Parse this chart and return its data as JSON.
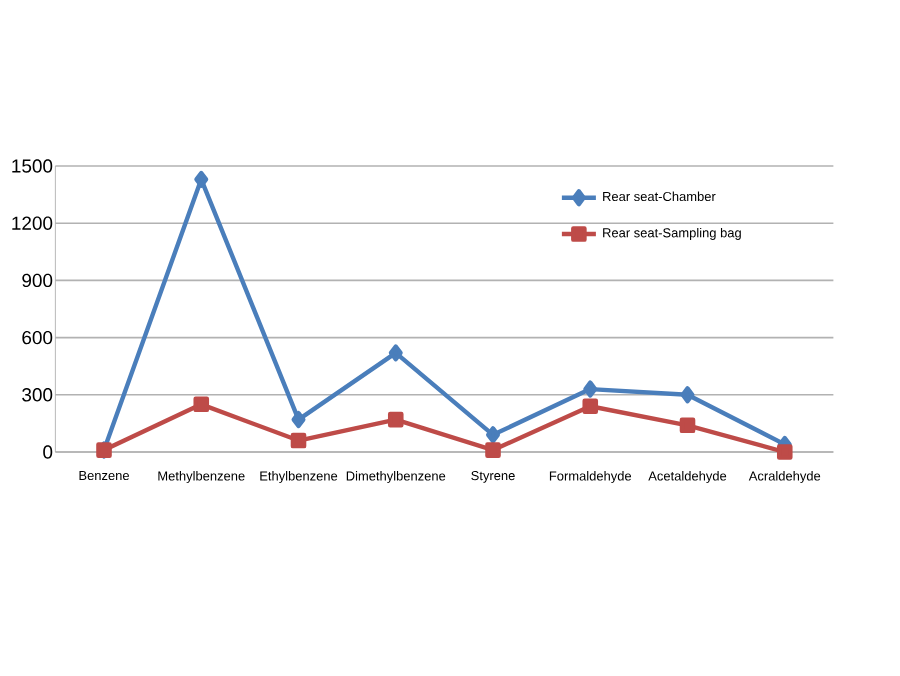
{
  "chart_data": {
    "type": "line",
    "categories": [
      "Benzene",
      "Methylbenzene",
      "Ethylbenzene",
      "Dimethylbenzene",
      "Styrene",
      "Formaldehyde",
      "Acetaldehyde",
      "Acraldehyde"
    ],
    "series": [
      {
        "name": "Rear seat-Chamber",
        "color": "#4a7ebb",
        "marker": "diamond",
        "values": [
          10,
          1430,
          170,
          520,
          90,
          330,
          300,
          40
        ]
      },
      {
        "name": "Rear seat-Sampling bag",
        "color": "#be4b48",
        "marker": "square",
        "values": [
          10,
          250,
          60,
          170,
          10,
          240,
          140,
          0
        ]
      }
    ],
    "ylim": [
      0,
      1500
    ],
    "yticks": [
      0,
      300,
      600,
      900,
      1200,
      1500
    ],
    "grid": "y",
    "legend": "top right",
    "line_style": "solid"
  }
}
